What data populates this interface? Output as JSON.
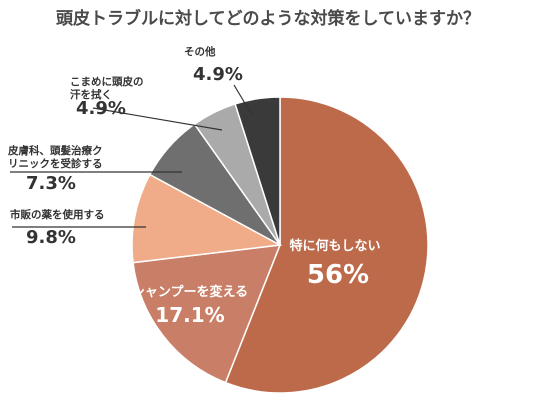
{
  "chart_data": {
    "type": "pie",
    "title": "頭皮トラブルに対してどのような対策をしていますか？",
    "start": "12 o'clock",
    "direction": "clockwise",
    "slices": [
      {
        "name": "特に何もしない",
        "name_lines": [
          "特に何もしない"
        ],
        "value_label": "56%",
        "value": 56,
        "color": "#bd6a4b"
      },
      {
        "name": "シャンプーを変える",
        "name_lines": [
          "シャンプーを変える"
        ],
        "value_label": "17.1%",
        "value": 17.1,
        "color": "#c97e67"
      },
      {
        "name": "市販の薬を使用する",
        "name_lines": [
          "市販の薬を使用する"
        ],
        "value_label": "9.8%",
        "value": 9.8,
        "color": "#f0ac88"
      },
      {
        "name": "皮膚科、頭髪治療クリニックを受診する",
        "name_lines": [
          "皮膚科、頭髪治療ク",
          "リニックを受診する"
        ],
        "value_label": "7.3%",
        "value": 7.3,
        "color": "#6f6f6f"
      },
      {
        "name": "こまめに頭皮の汗を拭く",
        "name_lines": [
          "こまめに頭皮の",
          "汗を拭く"
        ],
        "value_label": "4.9%",
        "value": 4.9,
        "color": "#aaaaaa"
      },
      {
        "name": "その他",
        "name_lines": [
          "その他"
        ],
        "value_label": "4.9%",
        "value": 4.9,
        "color": "#3a3a3a"
      }
    ]
  }
}
